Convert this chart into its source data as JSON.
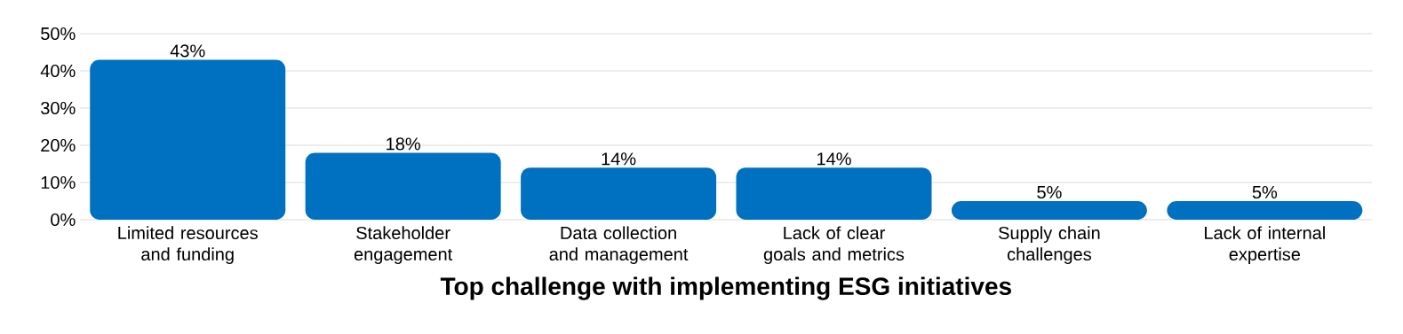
{
  "chart_data": {
    "type": "bar",
    "xlabel": "Top challenge with implementing ESG initiatives",
    "categories": [
      "Limited resources and funding",
      "Stakeholder engagement",
      "Data collection and management",
      "Lack of clear goals and metrics",
      "Supply chain challenges",
      "Lack of internal expertise"
    ],
    "values": [
      43,
      18,
      14,
      14,
      5,
      5
    ],
    "value_labels": [
      "43%",
      "18%",
      "14%",
      "14%",
      "5%",
      "5%"
    ],
    "color": "#0070c0",
    "ylim": [
      0,
      50
    ],
    "yticks": [
      {
        "value": 0,
        "label": "0%"
      },
      {
        "value": 10,
        "label": "10%"
      },
      {
        "value": 20,
        "label": "20%"
      },
      {
        "value": 30,
        "label": "30%"
      },
      {
        "value": 40,
        "label": "40%"
      },
      {
        "value": 50,
        "label": "50%"
      }
    ],
    "grid": "y"
  }
}
